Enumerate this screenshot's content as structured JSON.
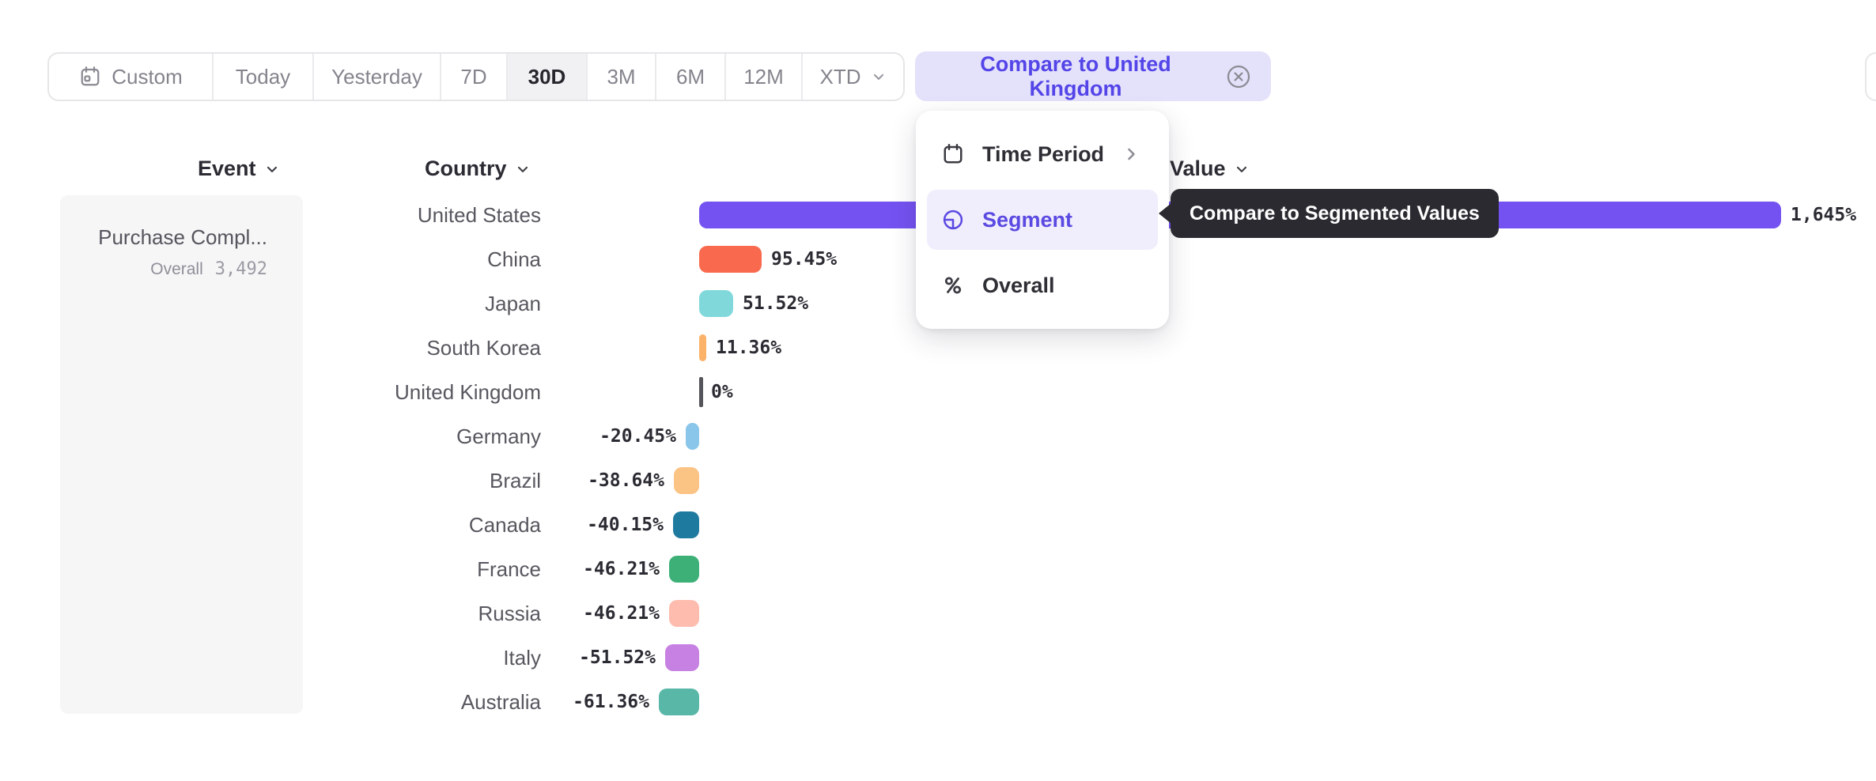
{
  "toolbar": {
    "ranges": [
      {
        "label": "Custom",
        "icon": "custom-calendar-icon"
      },
      {
        "label": "Today"
      },
      {
        "label": "Yesterday"
      },
      {
        "label": "7D"
      },
      {
        "label": "30D",
        "active": true
      },
      {
        "label": "3M"
      },
      {
        "label": "6M"
      },
      {
        "label": "12M"
      },
      {
        "label": "XTD",
        "has_dropdown": true
      }
    ],
    "compare_chip": {
      "label": "Compare to United Kingdom",
      "close_icon": "circled-x-icon"
    }
  },
  "columns": {
    "event": "Event",
    "country": "Country",
    "value": "Value"
  },
  "event_panel": {
    "event_name": "Purchase Compl...",
    "overall_label": "Overall",
    "overall_value": "3,492"
  },
  "context_menu": {
    "items": [
      {
        "label": "Time Period",
        "icon": "calendar-icon",
        "has_submenu": true
      },
      {
        "label": "Segment",
        "icon": "segment-icon",
        "selected": true
      },
      {
        "label": "Overall",
        "icon": "percent-icon"
      }
    ]
  },
  "tooltip": {
    "text": "Compare to Segmented Values"
  },
  "chart_data": {
    "type": "bar",
    "orientation": "horizontal",
    "title": "",
    "xlabel": "Value",
    "ylabel": "Country",
    "unit": "%",
    "baseline_category": "United Kingdom",
    "categories": [
      "United States",
      "China",
      "Japan",
      "South Korea",
      "United Kingdom",
      "Germany",
      "Brazil",
      "Canada",
      "France",
      "Russia",
      "Italy",
      "Australia"
    ],
    "values": [
      1645,
      95.45,
      51.52,
      11.36,
      0,
      -20.45,
      -38.64,
      -40.15,
      -46.21,
      -46.21,
      -51.52,
      -61.36
    ],
    "value_labels": [
      "1,645%",
      "95.45%",
      "51.52%",
      "11.36%",
      "0%",
      "-20.45%",
      "-38.64%",
      "-40.15%",
      "-46.21%",
      "-46.21%",
      "-51.52%",
      "-61.36%"
    ],
    "colors": [
      "#7452f1",
      "#f9694d",
      "#80d8da",
      "#fbb269",
      "#54545b",
      "#8ac6e9",
      "#fbc384",
      "#1f7aa0",
      "#3db077",
      "#fdbcae",
      "#c781e2",
      "#58b7a7"
    ],
    "accent_color": "#5345e8"
  }
}
